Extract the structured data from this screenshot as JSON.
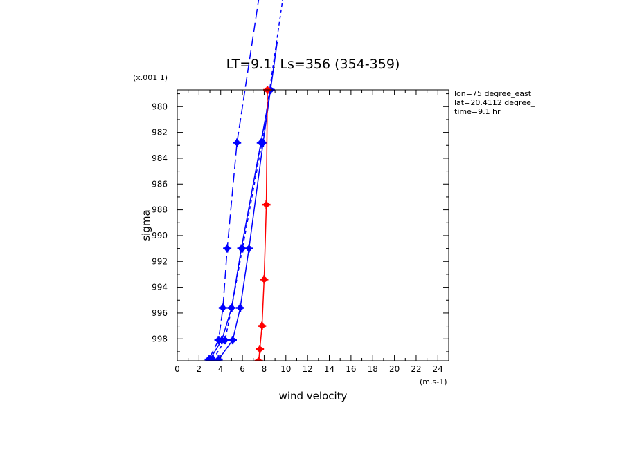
{
  "chart_data": {
    "type": "line",
    "title": "LT=9.1, Ls=356 (354-359)",
    "xlabel": "wind velocity",
    "ylabel": "sigma",
    "x_unit": "(m.s-1)",
    "y_unit": "(x.001 1)",
    "xlim": [
      0,
      25
    ],
    "ylim": [
      999.7,
      978.7
    ],
    "x_ticks": [
      "0",
      "2",
      "4",
      "6",
      "8",
      "10",
      "12",
      "14",
      "16",
      "18",
      "20",
      "22",
      "24"
    ],
    "y_ticks": [
      "980",
      "982",
      "984",
      "986",
      "988",
      "990",
      "992",
      "994",
      "996",
      "998"
    ],
    "info": [
      "lon=75 degree_east",
      "lat=20.4112 degree_",
      "time=9.1 hr"
    ],
    "colors": {
      "blue": "#0000ff",
      "red": "#ff0000"
    },
    "series": [
      {
        "color": "#0000ff",
        "style": "long-dash",
        "points": [
          [
            2.9,
            999.6
          ],
          [
            3.8,
            998.1
          ],
          [
            4.2,
            995.6
          ],
          [
            4.6,
            991.0
          ],
          [
            5.5,
            982.8
          ],
          [
            7.8,
            970.0
          ]
        ]
      },
      {
        "color": "#0000ff",
        "style": "short-dash",
        "points": [
          [
            3.3,
            999.6
          ],
          [
            4.4,
            998.1
          ],
          [
            5.0,
            995.6
          ],
          [
            6.0,
            991.0
          ],
          [
            7.8,
            982.8
          ],
          [
            10.0,
            970.0
          ]
        ]
      },
      {
        "color": "#0000ff",
        "style": "solid",
        "points": [
          [
            3.8,
            999.6
          ],
          [
            5.1,
            998.1
          ],
          [
            5.8,
            995.6
          ],
          [
            6.6,
            991.0
          ],
          [
            7.9,
            982.8
          ],
          [
            9.2,
            975.0
          ]
        ]
      },
      {
        "color": "#0000ff",
        "style": "solid",
        "points": [
          [
            3.0,
            999.6
          ],
          [
            4.1,
            998.1
          ],
          [
            5.0,
            995.6
          ],
          [
            5.9,
            991.0
          ],
          [
            7.7,
            982.8
          ],
          [
            8.6,
            978.7
          ]
        ]
      },
      {
        "color": "#ff0000",
        "style": "solid",
        "points": [
          [
            7.5,
            999.7
          ],
          [
            7.6,
            998.8
          ],
          [
            7.8,
            997.0
          ],
          [
            8.0,
            993.4
          ],
          [
            8.2,
            987.6
          ],
          [
            8.3,
            978.7
          ]
        ]
      }
    ]
  }
}
